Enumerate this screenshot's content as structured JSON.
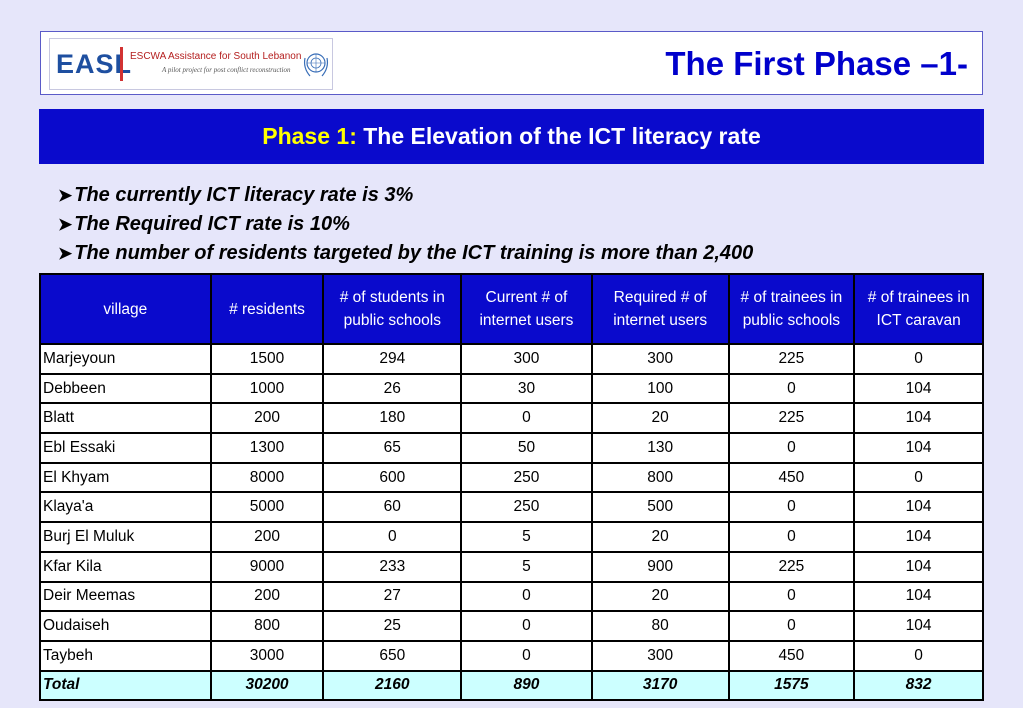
{
  "header": {
    "logo": {
      "acronym": "EASL",
      "org_name": "ESCWA Assistance for South Lebanon",
      "tagline": "A pilot project for post conflict reconstruction"
    },
    "title": "The First Phase –1-"
  },
  "banner": {
    "label": "Phase 1:",
    "text": " The Elevation of the ICT literacy rate"
  },
  "bullets": [
    "The currently ICT literacy rate is 3%",
    "The Required ICT rate is 10%",
    "The number of residents targeted by the ICT training is more than 2,400"
  ],
  "table": {
    "headers": [
      "village",
      "# residents",
      "# of students in public schools",
      "Current # of internet users",
      "Required # of internet users",
      "# of trainees in public schools",
      "# of trainees in ICT caravan"
    ],
    "rows": [
      [
        "Marjeyoun",
        "1500",
        "294",
        "300",
        "300",
        "225",
        "0"
      ],
      [
        "Debbeen",
        "1000",
        "26",
        "30",
        "100",
        "0",
        "104"
      ],
      [
        "Blatt",
        "200",
        "180",
        "0",
        "20",
        "225",
        "104"
      ],
      [
        "Ebl Essaki",
        "1300",
        "65",
        "50",
        "130",
        "0",
        "104"
      ],
      [
        "El Khyam",
        "8000",
        "600",
        "250",
        "800",
        "450",
        "0"
      ],
      [
        "Klaya'a",
        "5000",
        "60",
        "250",
        "500",
        "0",
        "104"
      ],
      [
        "Burj El Muluk",
        "200",
        "0",
        "5",
        "20",
        "0",
        "104"
      ],
      [
        "Kfar Kila",
        "9000",
        "233",
        "5",
        "900",
        "225",
        "104"
      ],
      [
        "Deir Meemas",
        "200",
        "27",
        "0",
        "20",
        "0",
        "104"
      ],
      [
        "Oudaiseh",
        "800",
        "25",
        "0",
        "80",
        "0",
        "104"
      ],
      [
        "Taybeh",
        "3000",
        "650",
        "0",
        "300",
        "450",
        "0"
      ]
    ],
    "total": [
      "Total",
      "30200",
      "2160",
      "890",
      "3170",
      "1575",
      "832"
    ]
  },
  "colors": {
    "background": "#e6e6fa",
    "banner": "#0a0acc",
    "label_yellow": "#ffff00",
    "title_blue": "#0000cc",
    "total_row": "#ccffff"
  },
  "icons": {
    "bullet": "arrowhead-bullet-icon",
    "un_emblem": "un-emblem-icon"
  }
}
